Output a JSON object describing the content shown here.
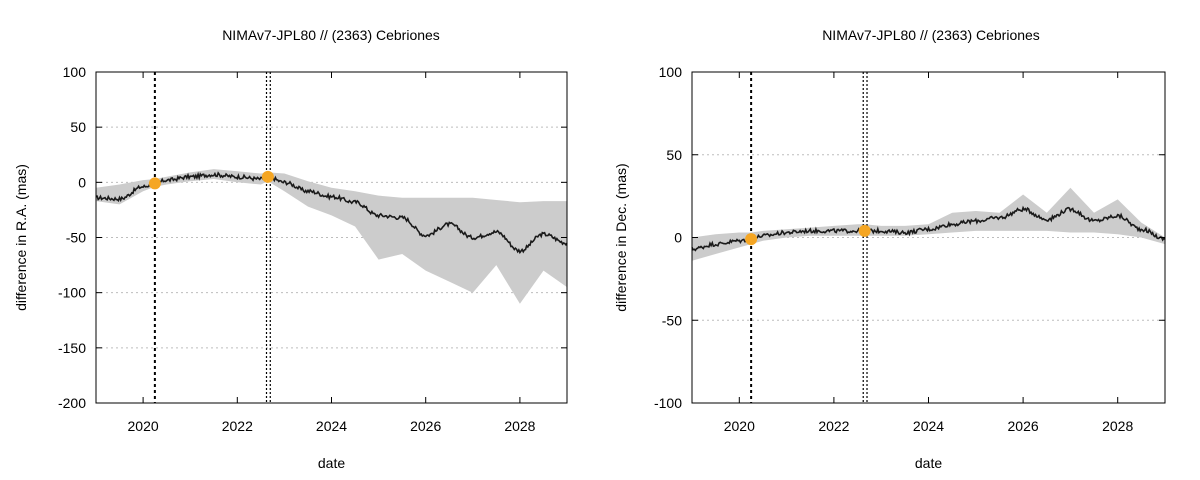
{
  "chart_data": [
    {
      "type": "line",
      "title": "NIMAv7-JPL80 // (2363) Cebriones",
      "xlabel": "date",
      "ylabel": "difference in R.A. (mas)",
      "xlim": [
        2019.0,
        2029.0
      ],
      "ylim": [
        -200,
        100
      ],
      "xticks": [
        2020,
        2022,
        2024,
        2026,
        2028
      ],
      "yticks": [
        -200,
        -150,
        -100,
        -50,
        0,
        50,
        100
      ],
      "grid": true,
      "colors": {
        "line": "#1a1a1a",
        "band": "#cccccc",
        "marker": "#f5a623"
      },
      "vlines": [
        2020.25,
        2022.62,
        2022.7
      ],
      "markers": [
        {
          "x": 2020.25,
          "y": -1
        },
        {
          "x": 2022.65,
          "y": 5
        }
      ],
      "series": [
        {
          "x": [
            2019.0,
            2019.5,
            2020.0,
            2020.25,
            2020.5,
            2021.0,
            2021.5,
            2022.0,
            2022.5,
            2022.65,
            2023.0,
            2023.5,
            2024.0,
            2024.5,
            2025.0,
            2025.5,
            2026.0,
            2026.5,
            2027.0,
            2027.5,
            2028.0,
            2028.5,
            2029.0
          ],
          "values": [
            -14,
            -15,
            -4,
            -1,
            2,
            5,
            7,
            5,
            3,
            5,
            0,
            -8,
            -13,
            -18,
            -30,
            -32,
            -48,
            -38,
            -50,
            -45,
            -62,
            -47,
            -55
          ],
          "lower": [
            -17,
            -20,
            -8,
            -4,
            -2,
            1,
            3,
            0,
            -2,
            1,
            -8,
            -22,
            -30,
            -40,
            -70,
            -65,
            -80,
            -90,
            -100,
            -75,
            -110,
            -80,
            -95
          ],
          "upper": [
            -5,
            -2,
            2,
            3,
            5,
            9,
            12,
            10,
            8,
            9,
            8,
            1,
            -5,
            -8,
            -12,
            -14,
            -14,
            -14,
            -14,
            -16,
            -18,
            -17,
            -17
          ]
        }
      ]
    },
    {
      "type": "line",
      "title": "NIMAv7-JPL80 // (2363) Cebriones",
      "xlabel": "date",
      "ylabel": "difference in Dec. (mas)",
      "xlim": [
        2019.0,
        2029.0
      ],
      "ylim": [
        -100,
        100
      ],
      "xticks": [
        2020,
        2022,
        2024,
        2026,
        2028
      ],
      "yticks": [
        -100,
        -50,
        0,
        50,
        100
      ],
      "grid": true,
      "colors": {
        "line": "#1a1a1a",
        "band": "#cccccc",
        "marker": "#f5a623"
      },
      "vlines": [
        2020.25,
        2022.62,
        2022.7
      ],
      "markers": [
        {
          "x": 2020.25,
          "y": -1
        },
        {
          "x": 2022.65,
          "y": 4
        }
      ],
      "series": [
        {
          "x": [
            2019.0,
            2019.5,
            2020.0,
            2020.25,
            2020.5,
            2021.0,
            2021.5,
            2022.0,
            2022.5,
            2022.65,
            2023.0,
            2023.5,
            2024.0,
            2024.5,
            2025.0,
            2025.5,
            2026.0,
            2026.5,
            2027.0,
            2027.5,
            2028.0,
            2028.5,
            2029.0
          ],
          "values": [
            -7,
            -4,
            -2,
            -1,
            1,
            3,
            4,
            4,
            4,
            4,
            4,
            3,
            5,
            8,
            10,
            12,
            17,
            11,
            17,
            10,
            13,
            5,
            -1
          ],
          "lower": [
            -14,
            -10,
            -6,
            -4,
            -2,
            0,
            1,
            1,
            1,
            1,
            1,
            1,
            2,
            3,
            4,
            4,
            4,
            4,
            3,
            3,
            2,
            0,
            -4
          ],
          "upper": [
            0,
            2,
            3,
            3,
            4,
            5,
            6,
            7,
            8,
            8,
            7,
            7,
            8,
            15,
            16,
            15,
            26,
            15,
            30,
            15,
            23,
            9,
            0
          ]
        }
      ]
    }
  ]
}
